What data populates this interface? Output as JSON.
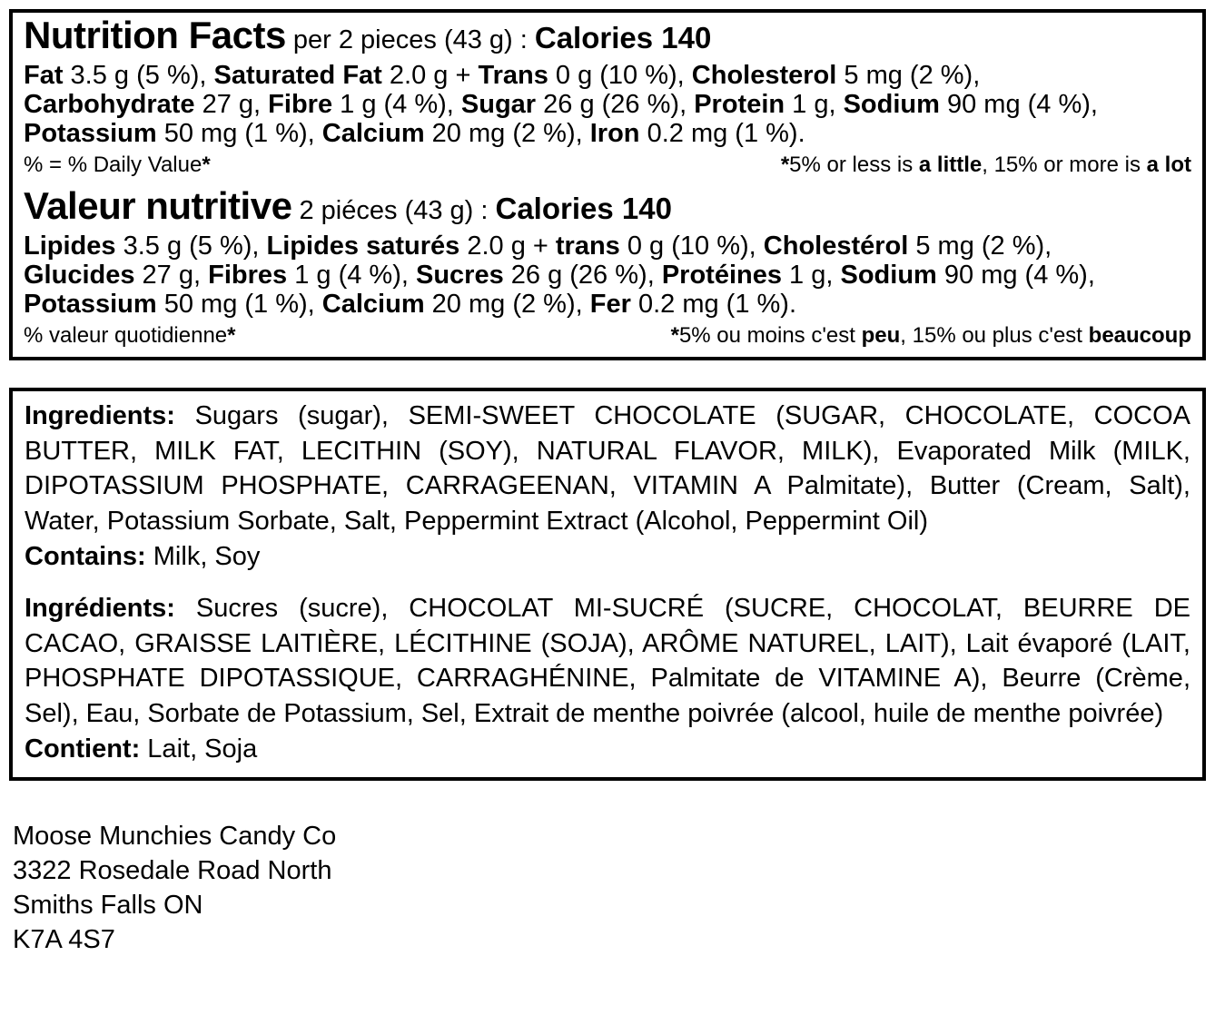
{
  "colors": {
    "text": "#000000",
    "border": "#000000",
    "background": "#ffffff"
  },
  "nutrition_facts_en": {
    "title_line": [
      {
        "big": "Nutrition Facts"
      },
      {
        "t": " per 2 pieces (43 g) : "
      },
      {
        "cal": "Calories 140"
      }
    ],
    "lines": [
      [
        {
          "b": "Fat"
        },
        {
          "t": " 3.5 g (5 %), "
        },
        {
          "b": "Saturated Fat"
        },
        {
          "t": " 2.0 g + "
        },
        {
          "b": "Trans"
        },
        {
          "t": " 0 g (10 %), "
        },
        {
          "b": "Cholesterol"
        },
        {
          "t": " 5 mg (2 %),"
        }
      ],
      [
        {
          "b": "Carbohydrate"
        },
        {
          "t": " 27 g, "
        },
        {
          "b": "Fibre"
        },
        {
          "t": " 1 g (4 %), "
        },
        {
          "b": "Sugar"
        },
        {
          "t": " 26 g (26 %), "
        },
        {
          "b": "Protein"
        },
        {
          "t": " 1 g, "
        },
        {
          "b": "Sodium"
        },
        {
          "t": " 90 mg (4 %),"
        }
      ],
      [
        {
          "b": "Potassium"
        },
        {
          "t": " 50 mg (1 %), "
        },
        {
          "b": "Calcium"
        },
        {
          "t": " 20 mg (2 %), "
        },
        {
          "b": "Iron"
        },
        {
          "t": " 0.2 mg (1 %)."
        }
      ]
    ],
    "footnote_left": [
      {
        "t": "% = % Daily Value"
      },
      {
        "b": "*"
      }
    ],
    "footnote_right": [
      {
        "b": "*"
      },
      {
        "t": "5% or less is "
      },
      {
        "b": "a little"
      },
      {
        "t": ", 15% or more is "
      },
      {
        "b": "a lot"
      }
    ]
  },
  "nutrition_facts_fr": {
    "title_line": [
      {
        "big": "Valeur nutritive"
      },
      {
        "t": " 2 piéces (43 g) : "
      },
      {
        "cal": "Calories 140"
      }
    ],
    "lines": [
      [
        {
          "b": "Lipides"
        },
        {
          "t": " 3.5 g (5 %), "
        },
        {
          "b": "Lipides saturés"
        },
        {
          "t": " 2.0 g + "
        },
        {
          "b": "trans"
        },
        {
          "t": " 0 g (10 %), "
        },
        {
          "b": "Cholestérol"
        },
        {
          "t": " 5 mg (2 %),"
        }
      ],
      [
        {
          "b": "Glucides"
        },
        {
          "t": " 27 g, "
        },
        {
          "b": "Fibres"
        },
        {
          "t": " 1 g (4 %), "
        },
        {
          "b": "Sucres"
        },
        {
          "t": " 26 g (26 %), "
        },
        {
          "b": "Protéines"
        },
        {
          "t": " 1 g, "
        },
        {
          "b": "Sodium"
        },
        {
          "t": " 90 mg (4 %),"
        }
      ],
      [
        {
          "b": "Potassium"
        },
        {
          "t": " 50 mg (1 %), "
        },
        {
          "b": "Calcium"
        },
        {
          "t": " 20 mg (2 %), "
        },
        {
          "b": "Fer"
        },
        {
          "t": " 0.2 mg (1 %)."
        }
      ]
    ],
    "footnote_left": [
      {
        "t": "% valeur quotidienne"
      },
      {
        "b": "*"
      }
    ],
    "footnote_right": [
      {
        "b": "*"
      },
      {
        "t": "5% ou moins c'est "
      },
      {
        "b": "peu"
      },
      {
        "t": ", 15% ou plus c'est "
      },
      {
        "b": "beaucoup"
      }
    ]
  },
  "ingredients_en": {
    "paragraph": [
      {
        "b": "Ingredients:"
      },
      {
        "t": " Sugars (sugar), SEMI-SWEET CHOCOLATE (SUGAR, CHOCOLATE, COCOA BUTTER, MILK FAT, LECITHIN (SOY), NATURAL FLAVOR, MILK), Evaporated Milk (MILK, DIPOTASSIUM PHOSPHATE, CARRAGEENAN, VITAMIN A Palmitate), Butter (Cream, Salt), Water, Potassium Sorbate, Salt, Peppermint Extract (Alcohol, Peppermint Oil)"
      }
    ],
    "contains": [
      {
        "b": "Contains:"
      },
      {
        "t": " Milk, Soy"
      }
    ]
  },
  "ingredients_fr": {
    "paragraph": [
      {
        "b": "Ingrédients:"
      },
      {
        "t": " Sucres (sucre), CHOCOLAT MI-SUCRÉ (SUCRE, CHOCOLAT, BEURRE DE CACAO, GRAISSE LAITIÈRE, LÉCITHINE (SOJA), ARÔME NATUREL, LAIT), Lait évaporé (LAIT, PHOSPHATE DIPOTASSIQUE, CARRAGHÉNINE, Palmitate de VITAMINE A), Beurre (Crème, Sel), Eau, Sorbate de Potassium, Sel, Extrait de menthe poivrée (alcool, huile de menthe poivrée)"
      }
    ],
    "contains": [
      {
        "b": "Contient:"
      },
      {
        "t": " Lait, Soja"
      }
    ]
  },
  "address": {
    "company": "Moose Munchies Candy Co",
    "street": "3322 Rosedale Road North",
    "city": "Smiths Falls ON",
    "postal_code": "K7A 4S7"
  }
}
